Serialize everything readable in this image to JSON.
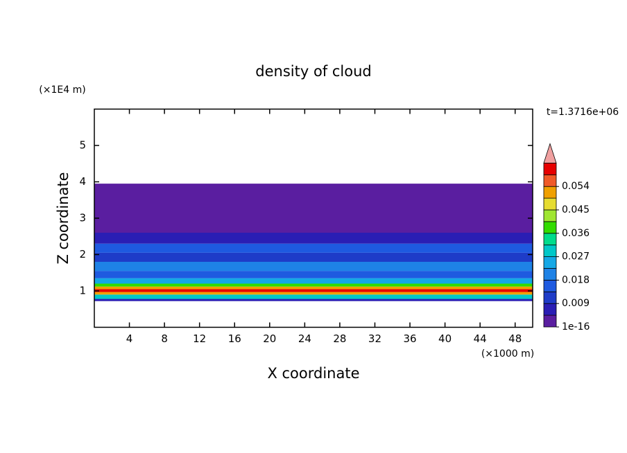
{
  "chart_data": {
    "type": "contour",
    "title": "density of cloud",
    "annotation": "t=1.3716e+06",
    "xlabel": "X coordinate",
    "ylabel": "Z coordinate",
    "xunit": "(×1000 m)",
    "yunit": "(×1E4 m)",
    "xlim": [
      0,
      50
    ],
    "xticks": [
      4,
      8,
      12,
      16,
      20,
      24,
      28,
      32,
      36,
      40,
      44,
      48
    ],
    "ylim": [
      0,
      6
    ],
    "yticks": [
      1,
      2,
      3,
      4,
      5
    ],
    "field": {
      "z_edges": [
        0.72,
        0.78,
        0.9,
        0.97,
        1.05,
        1.12,
        1.2,
        1.35,
        1.55,
        1.8,
        2.05,
        2.3,
        2.6,
        3.0,
        3.95
      ],
      "values": [
        0.008,
        0.03,
        0.05,
        0.06,
        0.05,
        0.04,
        0.025,
        0.015,
        0.02,
        0.012,
        0.016,
        0.006,
        0.003,
        0.001
      ]
    },
    "levels": [
      1e-16,
      0.0045,
      0.009,
      0.0135,
      0.018,
      0.0225,
      0.027,
      0.0315,
      0.036,
      0.0405,
      0.045,
      0.0495,
      0.054,
      0.0585
    ],
    "colors": [
      "#5a1ea0",
      "#2a1eb4",
      "#1e3cc8",
      "#1e5ae0",
      "#1e82e6",
      "#14a8e6",
      "#00c8c8",
      "#00dc8c",
      "#32dc00",
      "#a0e632",
      "#e6dc32",
      "#f0a000",
      "#f05a28",
      "#e60000"
    ],
    "extend_color": "#f0a0a0",
    "colorbar_ticks": [
      1e-16,
      0.009,
      0.018,
      0.027,
      0.036,
      0.045,
      0.054
    ]
  }
}
